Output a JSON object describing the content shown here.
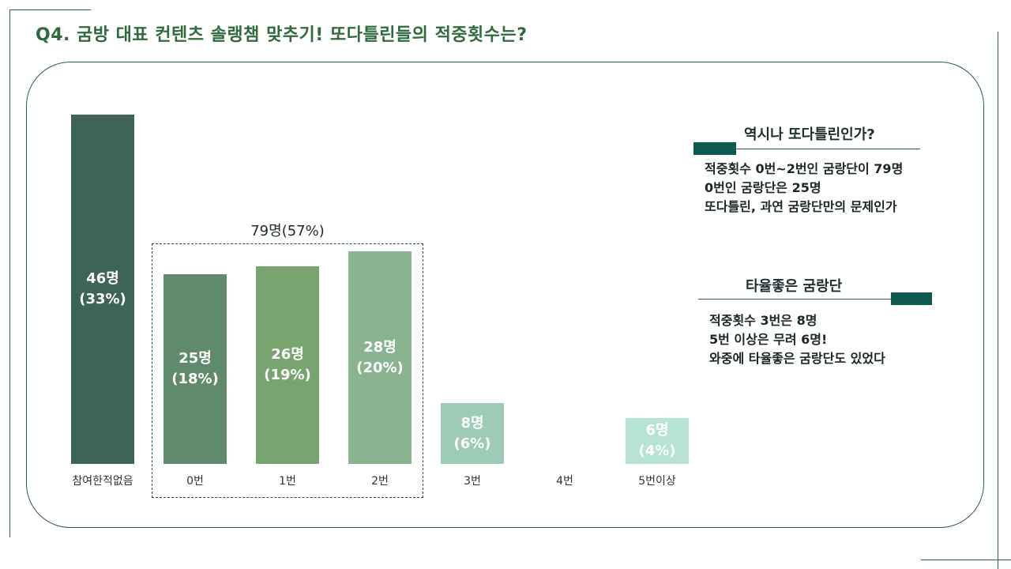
{
  "page_title": "Q4. 굼방 대표 컨텐츠 솔랭챔 맞추기! 또다틀린들의 적중횟수는?",
  "colors": {
    "title": "#2f6a3c",
    "frame": "#2c5c58",
    "accent_block": "#0f5a50",
    "bars": [
      "#3d6455",
      "#5f8a6c",
      "#78a46f",
      "#8ab48f",
      "#9ecbb8",
      "#b5dfcf",
      "#b6e3d2"
    ]
  },
  "chart_data": {
    "type": "bar",
    "title": "",
    "xlabel": "",
    "ylabel": "",
    "ylim": [
      0,
      46
    ],
    "categories": [
      "참여한적없음",
      "0번",
      "1번",
      "2번",
      "3번",
      "4번",
      "5번이상"
    ],
    "values": [
      46,
      25,
      26,
      28,
      8,
      0,
      6
    ],
    "count_labels": [
      "46명",
      "25명",
      "26명",
      "28명",
      "8명",
      "",
      "6명"
    ],
    "percent_labels": [
      "(33%)",
      "(18%)",
      "(19%)",
      "(20%)",
      "(6%)",
      "",
      "(4%)"
    ],
    "group_annotation": {
      "label": "79명(57%)",
      "categories": [
        "0번",
        "1번",
        "2번"
      ]
    }
  },
  "notes": [
    {
      "heading": "역시나 또다틀린인가?",
      "lines": [
        "적중횟수 0번~2번인 굼랑단이 79명",
        "0번인 굼랑단은 25명",
        "또다틀린, 과연 굼랑단만의 문제인가"
      ]
    },
    {
      "heading": "타율좋은 굼랑단",
      "lines": [
        "적중횟수 3번은 8명",
        "5번 이상은 무려 6명!",
        "와중에 타율좋은 굼랑단도 있었다"
      ]
    }
  ]
}
